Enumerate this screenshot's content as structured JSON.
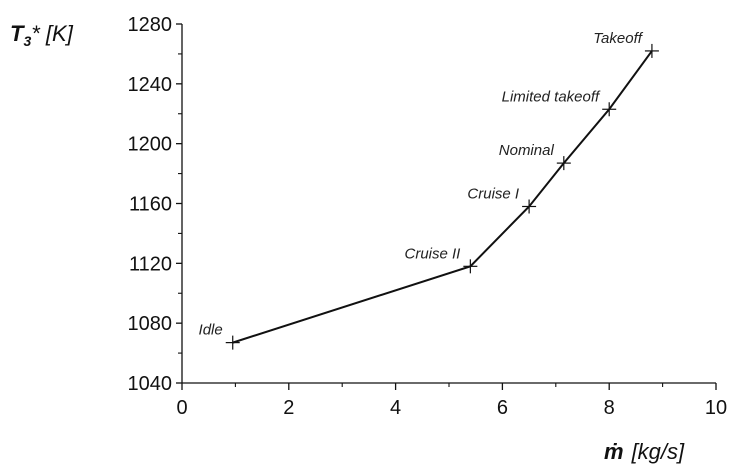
{
  "chart_data": {
    "type": "line",
    "xlabel": {
      "symbol": "ṁ",
      "unit": "[kg/s]"
    },
    "ylabel": {
      "symbol": "T",
      "subscript": "3",
      "suffix": "* [K]"
    },
    "xlim": [
      0,
      10
    ],
    "ylim": [
      1040,
      1280
    ],
    "xticks": [
      0,
      2,
      4,
      6,
      8,
      10
    ],
    "yticks": [
      1040,
      1080,
      1120,
      1160,
      1200,
      1240,
      1280
    ],
    "grid": false,
    "series": [
      {
        "points": [
          {
            "x": 0.95,
            "y": 1067,
            "label": "Idle"
          },
          {
            "x": 5.4,
            "y": 1118,
            "label": "Cruise II"
          },
          {
            "x": 6.5,
            "y": 1158,
            "label": "Cruise I"
          },
          {
            "x": 7.15,
            "y": 1187,
            "label": "Nominal"
          },
          {
            "x": 8.0,
            "y": 1223,
            "label": "Limited takeoff"
          },
          {
            "x": 8.8,
            "y": 1262,
            "label": "Takeoff"
          }
        ]
      }
    ],
    "colors": {
      "line": "#111111",
      "axis": "#111111",
      "text": "#222222"
    }
  }
}
